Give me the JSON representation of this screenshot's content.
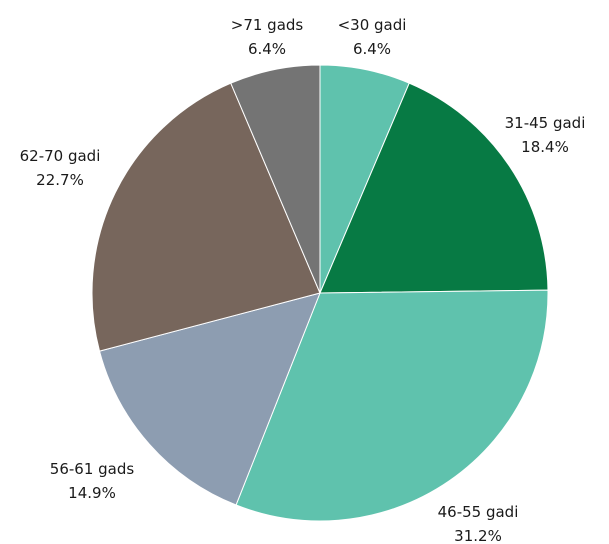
{
  "chart_data": {
    "type": "pie",
    "title": "",
    "start": "top, clockwise",
    "slices": [
      {
        "label": "<30 gadi",
        "value": 6.4,
        "value_label": "6.4%",
        "color": "#5fc2ad"
      },
      {
        "label": "31-45 gadi",
        "value": 18.4,
        "value_label": "18.4%",
        "color": "#077a44"
      },
      {
        "label": "46-55 gadi",
        "value": 31.2,
        "value_label": "31.2%",
        "color": "#5fc2ad"
      },
      {
        "label": "56-61 gads",
        "value": 14.9,
        "value_label": "14.9%",
        "color": "#8d9db1"
      },
      {
        "label": "62-70 gadi",
        "value": 22.7,
        "value_label": "22.7%",
        "color": "#77665c"
      },
      {
        "label": ">71 gads",
        "value": 6.4,
        "value_label": "6.4%",
        "color": "#747474"
      }
    ]
  }
}
